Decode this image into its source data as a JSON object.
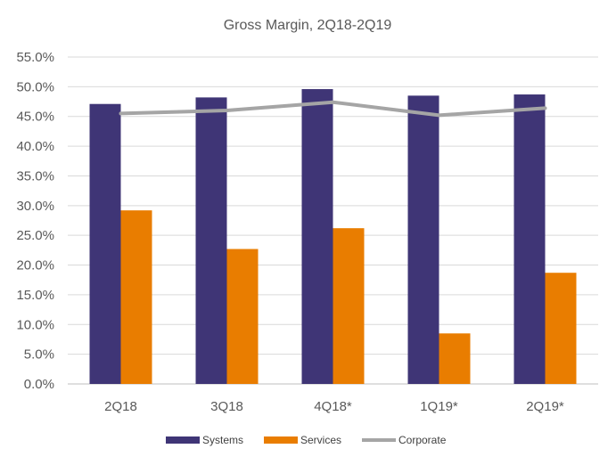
{
  "chart_data": {
    "type": "bar+line",
    "title": "Gross Margin, 2Q18-2Q19",
    "categories": [
      "2Q18",
      "3Q18",
      "4Q18*",
      "1Q19*",
      "2Q19*"
    ],
    "ylim": [
      0,
      55
    ],
    "ytick_values": [
      0,
      5,
      10,
      15,
      20,
      25,
      30,
      35,
      40,
      45,
      50,
      55
    ],
    "ytick_labels": [
      "0.0%",
      "5.0%",
      "10.0%",
      "15.0%",
      "20.0%",
      "25.0%",
      "30.0%",
      "35.0%",
      "40.0%",
      "45.0%",
      "50.0%",
      "55.0%"
    ],
    "grid": "horizontal",
    "legend_position": "bottom",
    "series": [
      {
        "name": "Systems",
        "type": "bar",
        "color": "#3f3576",
        "values": [
          47.1,
          48.2,
          49.6,
          48.5,
          48.7
        ]
      },
      {
        "name": "Services",
        "type": "bar",
        "color": "#e97d00",
        "values": [
          29.2,
          22.7,
          26.2,
          8.5,
          18.7
        ]
      },
      {
        "name": "Corporate",
        "type": "line",
        "color": "#a5a5a5",
        "values": [
          45.5,
          46.0,
          47.4,
          45.2,
          46.4
        ]
      }
    ]
  }
}
